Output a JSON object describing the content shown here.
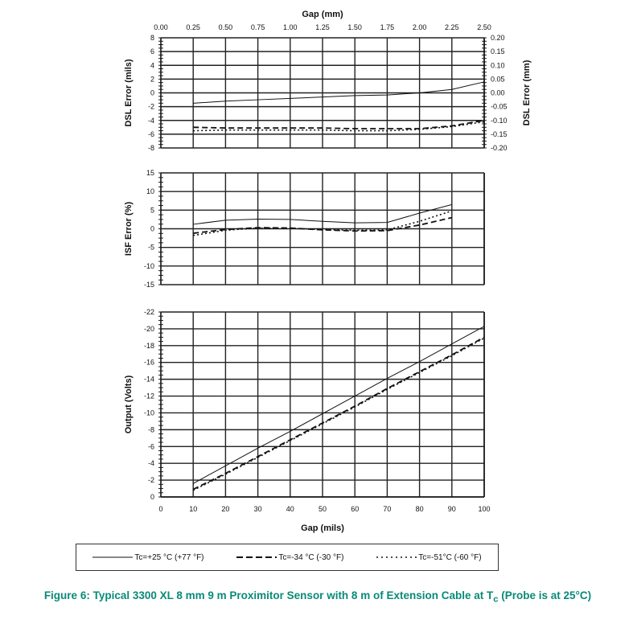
{
  "chart_data": [
    {
      "type": "line",
      "ylabel": "DSL Error (mils)",
      "y2label": "DSL Error (mm)",
      "x2label": "Gap (mm)",
      "x2_ticks": [
        "0.00",
        "0.25",
        "0.50",
        "0.75",
        "1.00",
        "1.25",
        "1.50",
        "1.75",
        "2.00",
        "2.25",
        "2.50"
      ],
      "y_ticks": [
        "8",
        "6",
        "4",
        "2",
        "0",
        "-2",
        "-4",
        "-6",
        "-8"
      ],
      "y2_ticks": [
        "0.20",
        "0.15",
        "0.10",
        "0.05",
        "0.00",
        "-0.05",
        "-0.10",
        "-0.15",
        "-0.20"
      ],
      "xlim": [
        0,
        100
      ],
      "ylim": [
        -8,
        8
      ],
      "grid": true,
      "x": [
        10,
        20,
        30,
        40,
        50,
        60,
        70,
        80,
        90,
        100
      ],
      "series": [
        {
          "name": "Tc=+25 °C (+77 °F)",
          "style": "solid",
          "values": [
            -1.5,
            -1.2,
            -1.0,
            -0.8,
            -0.6,
            -0.4,
            -0.3,
            0.0,
            0.5,
            1.6
          ]
        },
        {
          "name": "Tc=-34 °C (-30 °F)",
          "style": "dashed",
          "values": [
            -5.0,
            -5.1,
            -5.1,
            -5.1,
            -5.1,
            -5.2,
            -5.2,
            -5.2,
            -4.8,
            -4.0
          ]
        },
        {
          "name": "Tc=-51 °C (-60 °F)",
          "style": "dotted",
          "values": [
            -5.5,
            -5.4,
            -5.4,
            -5.4,
            -5.4,
            -5.5,
            -5.5,
            -5.3,
            -4.9,
            -4.2
          ]
        }
      ]
    },
    {
      "type": "line",
      "ylabel": "ISF Error (%)",
      "y_ticks": [
        "15",
        "10",
        "5",
        "0",
        "-5",
        "-10",
        "-15"
      ],
      "xlim": [
        0,
        100
      ],
      "ylim": [
        -15,
        15
      ],
      "grid": true,
      "x": [
        10,
        20,
        30,
        40,
        50,
        60,
        70,
        80,
        90
      ],
      "series": [
        {
          "name": "Tc=+25 °C (+77 °F)",
          "style": "solid",
          "values": [
            1.2,
            2.3,
            2.6,
            2.5,
            2.0,
            1.6,
            1.7,
            4.2,
            6.5
          ]
        },
        {
          "name": "Tc=-34 °C (-30 °F)",
          "style": "dashed",
          "values": [
            -1.2,
            -0.2,
            0.3,
            0.2,
            -0.3,
            -0.6,
            -0.5,
            1.0,
            3.0
          ]
        },
        {
          "name": "Tc=-51 °C (-60 °F)",
          "style": "dotted",
          "values": [
            -1.8,
            -0.4,
            0.2,
            0.1,
            -0.2,
            -0.4,
            -0.3,
            2.0,
            4.8
          ]
        }
      ]
    },
    {
      "type": "line",
      "xlabel": "Gap (mils)",
      "ylabel": "Output (Volts)",
      "x_ticks": [
        "0",
        "10",
        "20",
        "30",
        "40",
        "50",
        "60",
        "70",
        "80",
        "90",
        "100"
      ],
      "y_ticks": [
        "-22",
        "-20",
        "-18",
        "-16",
        "-14",
        "-12",
        "-10",
        "-8",
        "-6",
        "-4",
        "-2",
        "0"
      ],
      "xlim": [
        0,
        100
      ],
      "ylim": [
        0,
        -22
      ],
      "grid": true,
      "x": [
        10,
        20,
        30,
        40,
        50,
        60,
        70,
        80,
        90,
        100
      ],
      "series": [
        {
          "name": "Tc=+25 °C (+77 °F)",
          "style": "solid",
          "values": [
            -1.6,
            -3.7,
            -5.8,
            -7.8,
            -9.9,
            -12.0,
            -14.1,
            -16.1,
            -18.2,
            -20.3
          ]
        },
        {
          "name": "Tc=-34 °C (-30 °F)",
          "style": "dashed",
          "values": [
            -0.9,
            -2.8,
            -4.8,
            -6.8,
            -8.8,
            -10.8,
            -12.9,
            -14.9,
            -16.9,
            -19.0
          ]
        },
        {
          "name": "Tc=-51 °C (-60 °F)",
          "style": "dotted",
          "values": [
            -0.8,
            -2.7,
            -4.7,
            -6.7,
            -8.7,
            -10.7,
            -12.8,
            -14.8,
            -16.8,
            -18.9
          ]
        }
      ]
    }
  ],
  "legend": {
    "items": [
      "Tc=+25 °C (+77 °F)",
      "Tc=-34 °C (-30 °F)",
      "Tc=-51°C (-60 °F)"
    ],
    "placement": "bottom"
  },
  "caption": {
    "prefix": "Figure 6:  Typical 3300 XL 8 mm 9 m Proximitor Sensor with 8 m of Extension Cable at T",
    "subscript": "c",
    "suffix": " (Probe is at 25°C)",
    "color": "#0a8a78"
  }
}
